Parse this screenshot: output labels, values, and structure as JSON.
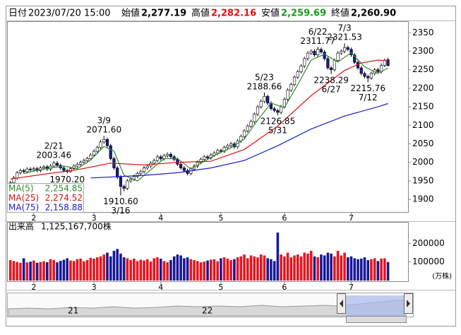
{
  "header": {
    "date_label": "日付",
    "date": "2023/07/20 15:00",
    "open_label": "始値",
    "open": "2,277.19",
    "high_label": "高値",
    "high": "2,282.16",
    "low_label": "安値",
    "low": "2,259.69",
    "close_label": "終値",
    "close": "2,260.90"
  },
  "navigator": {
    "labels": [
      "21",
      "22"
    ]
  },
  "chart_data": [
    {
      "type": "candlestick",
      "xlim": [
        -1,
        119
      ],
      "ylim": [
        1866,
        2381
      ],
      "yticks": [
        1900,
        1950,
        2000,
        2050,
        2100,
        2150,
        2200,
        2250,
        2300,
        2350
      ],
      "xticks": [
        {
          "value": 7,
          "label": "2"
        },
        {
          "value": 25,
          "label": "3"
        },
        {
          "value": 45,
          "label": "4"
        },
        {
          "value": 63,
          "label": "5"
        },
        {
          "value": 82,
          "label": "6"
        },
        {
          "value": 102,
          "label": "7"
        }
      ],
      "up_color": "#ffffff",
      "down_color": "#1c1c8c",
      "candles": {
        "open": [
          1940,
          1945,
          1958,
          1972,
          1978,
          1975,
          1982,
          1980,
          1983,
          1978,
          1985,
          1988,
          1982,
          1990,
          1998,
          1992,
          1985,
          1978,
          1975,
          1983,
          1990,
          1995,
          2000,
          2005,
          2010,
          2020,
          2030,
          2040,
          2055,
          2062,
          2045,
          2010,
          1985,
          1960,
          1935,
          1930,
          1950,
          1955,
          1962,
          1970,
          1975,
          1985,
          1990,
          1998,
          2005,
          2015,
          2010,
          2018,
          2022,
          2015,
          2008,
          1995,
          1985,
          1978,
          1970,
          1982,
          1990,
          2000,
          2008,
          2015,
          2012,
          2020,
          2025,
          2032,
          2030,
          2040,
          2045,
          2050,
          2042,
          2058,
          2070,
          2085,
          2098,
          2110,
          2130,
          2150,
          2165,
          2178,
          2160,
          2145,
          2140,
          2135,
          2150,
          2170,
          2195,
          2210,
          2230,
          2245,
          2260,
          2280,
          2295,
          2300,
          2290,
          2305,
          2298,
          2280,
          2255,
          2250,
          2275,
          2295,
          2300,
          2310,
          2305,
          2290,
          2270,
          2255,
          2240,
          2232,
          2228,
          2240,
          2250,
          2245,
          2262,
          2277.19
        ],
        "high": [
          1950,
          1963,
          1977,
          1983,
          1983,
          1987,
          1987,
          1988,
          1988,
          1990,
          1993,
          1993,
          1995,
          2003.46,
          2003,
          1997,
          1990,
          1983,
          1988,
          1995,
          2000,
          2005,
          2010,
          2015,
          2025,
          2035,
          2045,
          2060,
          2071.6,
          2067,
          2050,
          2015,
          1990,
          1965,
          1940,
          1955,
          1960,
          1967,
          1975,
          1980,
          1990,
          1995,
          2003,
          2010,
          2020,
          2020,
          2023,
          2027,
          2027,
          2020,
          2013,
          2000,
          1990,
          1983,
          1987,
          1995,
          2005,
          2013,
          2020,
          2020,
          2025,
          2030,
          2037,
          2037,
          2045,
          2050,
          2055,
          2055,
          2063,
          2075,
          2090,
          2103,
          2115,
          2135,
          2155,
          2170,
          2188.66,
          2183,
          2165,
          2150,
          2145,
          2155,
          2175,
          2200,
          2215,
          2235,
          2250,
          2265,
          2285,
          2300,
          2305,
          2305,
          2311.77,
          2310,
          2303,
          2285,
          2260,
          2280,
          2300,
          2305,
          2321.53,
          2315,
          2310,
          2295,
          2275,
          2260,
          2245,
          2237,
          2245,
          2255,
          2255,
          2267,
          2280,
          2282.16
        ],
        "low": [
          1935,
          1940,
          1953,
          1967,
          1970,
          1970,
          1975,
          1975,
          1973,
          1973,
          1980,
          1977,
          1977,
          1985,
          1987,
          1980,
          1973,
          1970.2,
          1972,
          1978,
          1985,
          1990,
          1995,
          2000,
          2005,
          2015,
          2025,
          2035,
          2050,
          2040,
          2005,
          1980,
          1955,
          1910.6,
          1922,
          1925,
          1945,
          1950,
          1957,
          1965,
          1970,
          1980,
          1985,
          1993,
          2000,
          2005,
          2005,
          2013,
          2010,
          2003,
          1990,
          1980,
          1973,
          1965,
          1965,
          1977,
          1985,
          1995,
          2003,
          2007,
          2007,
          2015,
          2020,
          2025,
          2025,
          2035,
          2040,
          2037,
          2037,
          2053,
          2065,
          2080,
          2093,
          2105,
          2125,
          2145,
          2160,
          2155,
          2140,
          2135,
          2126.85,
          2130,
          2145,
          2165,
          2190,
          2205,
          2225,
          2240,
          2255,
          2275,
          2290,
          2285,
          2285,
          2293,
          2275,
          2250,
          2238.29,
          2245,
          2270,
          2290,
          2295,
          2300,
          2285,
          2265,
          2250,
          2235,
          2227,
          2215.76,
          2223,
          2235,
          2240,
          2240,
          2257,
          2259.69
        ],
        "close": [
          1945,
          1958,
          1972,
          1978,
          1975,
          1982,
          1980,
          1983,
          1978,
          1985,
          1988,
          1982,
          1990,
          1998,
          1992,
          1985,
          1978,
          1975,
          1983,
          1990,
          1995,
          2000,
          2005,
          2010,
          2020,
          2030,
          2040,
          2055,
          2062,
          2045,
          2010,
          1985,
          1960,
          1935,
          1930,
          1950,
          1955,
          1962,
          1970,
          1975,
          1985,
          1990,
          1998,
          2005,
          2015,
          2010,
          2018,
          2022,
          2015,
          2008,
          1995,
          1985,
          1978,
          1970,
          1982,
          1990,
          2000,
          2008,
          2015,
          2012,
          2020,
          2025,
          2032,
          2030,
          2040,
          2045,
          2050,
          2042,
          2058,
          2070,
          2085,
          2098,
          2110,
          2130,
          2150,
          2165,
          2178,
          2160,
          2145,
          2140,
          2135,
          2150,
          2170,
          2195,
          2210,
          2230,
          2245,
          2260,
          2280,
          2295,
          2300,
          2290,
          2305,
          2298,
          2280,
          2255,
          2250,
          2275,
          2295,
          2300,
          2310,
          2305,
          2290,
          2270,
          2255,
          2240,
          2232,
          2228,
          2240,
          2250,
          2245,
          2262,
          2275,
          2260.9
        ]
      },
      "series": [
        {
          "name": "MA(5)",
          "color": "#2e8b2e",
          "last_label": "2,254.85",
          "x": [
            4,
            8,
            12,
            16,
            20,
            24,
            28,
            31,
            34,
            38,
            42,
            46,
            50,
            54,
            58,
            62,
            66,
            70,
            74,
            78,
            82,
            86,
            90,
            94,
            98,
            102,
            106,
            110,
            113
          ],
          "values": [
            1970,
            1979,
            1985,
            1990,
            1983,
            2006,
            2043,
            2030,
            1965,
            1950,
            1980,
            2010,
            2010,
            1982,
            2003,
            2023,
            2039,
            2063,
            2114,
            2160,
            2148,
            2210,
            2276,
            2292,
            2271,
            2296,
            2258,
            2240,
            2254.85
          ]
        },
        {
          "name": "MA(25)",
          "color": "#e01010",
          "last_label": "2,274.52",
          "x": [
            0,
            10,
            20,
            30,
            40,
            50,
            60,
            70,
            80,
            90,
            100,
            105,
            110,
            113
          ],
          "values": [
            1955,
            1968,
            1980,
            1998,
            1993,
            2000,
            2003,
            2035,
            2098,
            2180,
            2248,
            2268,
            2276,
            2274.52
          ]
        },
        {
          "name": "MA(75)",
          "color": "#1a1ad0",
          "last_label": "2,158.88",
          "x": [
            24,
            40,
            50,
            60,
            70,
            80,
            90,
            100,
            110,
            113
          ],
          "values": [
            1958,
            1965,
            1972,
            1985,
            2005,
            2045,
            2090,
            2125,
            2150,
            2158.88
          ]
        }
      ],
      "annotations": [
        {
          "date": "2/21",
          "value": 2003.46
        },
        {
          "value": 1970.2,
          "value_label": "1970.20"
        },
        {
          "date": "3/9",
          "value": 2071.6,
          "value_label": "2071.60"
        },
        {
          "date": "3/16",
          "value": 1910.6,
          "value_label": "1910.60"
        },
        {
          "date": "5/23",
          "value": 2188.66
        },
        {
          "date": "5/31",
          "value": 2126.85
        },
        {
          "date": "6/22",
          "value": 2311.77
        },
        {
          "date": "6/27",
          "value": 2238.29
        },
        {
          "date": "7/3",
          "value": 2321.53
        },
        {
          "date": "7/12",
          "value": 2215.76
        }
      ]
    },
    {
      "type": "bar",
      "title": "出来高",
      "total_label": "1,125,167,700株",
      "unit_label": "(万株)",
      "ylim": [
        0,
        300000
      ],
      "yticks": [
        100000,
        200000
      ],
      "up_color": "#e8141e",
      "down_color": "#18189a",
      "values": [
        110000,
        105000,
        100000,
        95000,
        120000,
        98000,
        102000,
        108000,
        96000,
        100000,
        104000,
        99000,
        115000,
        110000,
        98000,
        106000,
        112000,
        120000,
        108000,
        105000,
        115000,
        118000,
        104000,
        110000,
        122000,
        118000,
        125000,
        130000,
        140000,
        150000,
        130000,
        160000,
        170000,
        145000,
        125000,
        120000,
        110000,
        118000,
        105000,
        112000,
        108000,
        115000,
        102000,
        120000,
        125000,
        118000,
        105000,
        98000,
        110000,
        130000,
        140000,
        135000,
        120000,
        125000,
        115000,
        110000,
        105000,
        98000,
        102000,
        108000,
        112000,
        115000,
        104000,
        120000,
        125000,
        118000,
        110000,
        115000,
        125000,
        130000,
        140000,
        120000,
        135000,
        130000,
        125000,
        140000,
        135000,
        120000,
        115000,
        105000,
        258000,
        140000,
        130000,
        150000,
        125000,
        135000,
        140000,
        130000,
        150000,
        145000,
        160000,
        130000,
        125000,
        140000,
        135000,
        150000,
        145000,
        130000,
        160000,
        135000,
        150000,
        125000,
        130000,
        120000,
        115000,
        118000,
        125000,
        110000,
        115000,
        120000,
        105000,
        118000,
        120000,
        100000
      ]
    }
  ]
}
